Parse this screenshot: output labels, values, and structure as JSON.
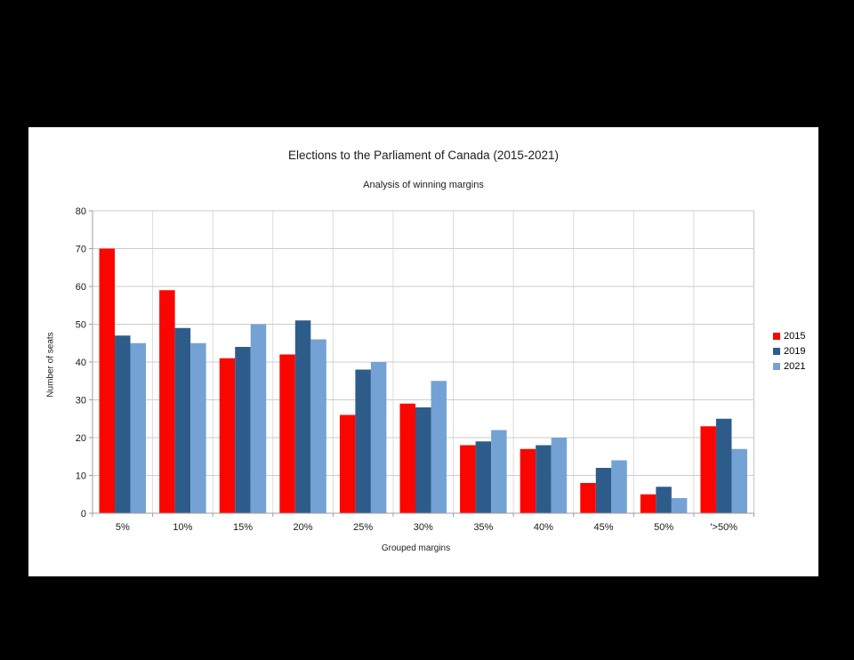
{
  "chart_data": {
    "type": "bar",
    "title": "Elections to the Parliament of Canada (2015-2021)",
    "subtitle": "Analysis of winning margins",
    "xlabel": "Grouped margins",
    "ylabel": "Number of seats",
    "categories": [
      "5%",
      "10%",
      "15%",
      "20%",
      "25%",
      "30%",
      "35%",
      "40%",
      "45%",
      "50%",
      "'>50%"
    ],
    "series": [
      {
        "name": "2015",
        "color": "#fb0500",
        "values": [
          70,
          59,
          41,
          42,
          26,
          29,
          18,
          17,
          8,
          5,
          23
        ]
      },
      {
        "name": "2019",
        "color": "#2e5c8a",
        "values": [
          47,
          49,
          44,
          51,
          38,
          28,
          19,
          18,
          12,
          7,
          25
        ]
      },
      {
        "name": "2021",
        "color": "#74a2d4",
        "values": [
          45,
          45,
          50,
          46,
          40,
          35,
          22,
          20,
          14,
          4,
          17
        ]
      }
    ],
    "ylim": [
      0,
      80
    ],
    "ytick_step": 10,
    "grid": true,
    "legend_position": "right",
    "colors": {
      "background": "#000000",
      "chart_background": "#ffffff",
      "axis": "#9e9e9e",
      "gridline": "#cdcdcd",
      "vertical_gridline": "#dcdcdc",
      "plot_border": "#c3c3c3",
      "text": "#1c1c1c"
    }
  }
}
